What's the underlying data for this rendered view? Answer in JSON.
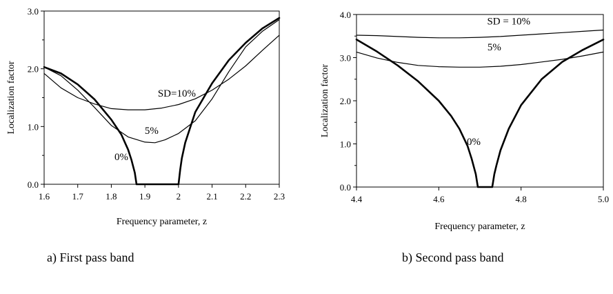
{
  "chart_data": [
    {
      "type": "line",
      "caption": "a) First pass band",
      "xlabel": "Frequency parameter, z",
      "ylabel": "Localization factor",
      "xlim": [
        1.6,
        2.3
      ],
      "ylim": [
        0.0,
        3.0
      ],
      "xticks": [
        "1.6",
        "1.7",
        "1.8",
        "1.9",
        "2",
        "2.1",
        "2.2",
        "2.3"
      ],
      "yticks": [
        "0.0",
        "1.0",
        "2.0",
        "3.0"
      ],
      "annotations": [
        {
          "text": "SD=10%",
          "x": 1.995,
          "y": 1.52
        },
        {
          "text": "5%",
          "x": 1.92,
          "y": 0.87
        },
        {
          "text": "0%",
          "x": 1.83,
          "y": 0.42
        }
      ],
      "series": [
        {
          "label": "0%",
          "weight": "thick",
          "points": [
            [
              1.6,
              2.03
            ],
            [
              1.65,
              1.92
            ],
            [
              1.7,
              1.73
            ],
            [
              1.75,
              1.47
            ],
            [
              1.8,
              1.12
            ],
            [
              1.83,
              0.86
            ],
            [
              1.85,
              0.6
            ],
            [
              1.86,
              0.42
            ],
            [
              1.87,
              0.2
            ],
            [
              1.875,
              0.0
            ],
            [
              2.0,
              0.0
            ],
            [
              2.005,
              0.25
            ],
            [
              2.01,
              0.45
            ],
            [
              2.02,
              0.72
            ],
            [
              2.05,
              1.25
            ],
            [
              2.1,
              1.75
            ],
            [
              2.15,
              2.15
            ],
            [
              2.2,
              2.45
            ],
            [
              2.25,
              2.7
            ],
            [
              2.3,
              2.88
            ]
          ]
        },
        {
          "label": "5%",
          "weight": "thin",
          "points": [
            [
              1.6,
              2.03
            ],
            [
              1.65,
              1.88
            ],
            [
              1.7,
              1.63
            ],
            [
              1.75,
              1.33
            ],
            [
              1.8,
              1.02
            ],
            [
              1.85,
              0.82
            ],
            [
              1.9,
              0.73
            ],
            [
              1.93,
              0.72
            ],
            [
              1.96,
              0.77
            ],
            [
              2.0,
              0.88
            ],
            [
              2.05,
              1.1
            ],
            [
              2.1,
              1.48
            ],
            [
              2.15,
              1.95
            ],
            [
              2.2,
              2.38
            ],
            [
              2.25,
              2.65
            ],
            [
              2.3,
              2.85
            ]
          ]
        },
        {
          "label": "SD=10%",
          "weight": "thin",
          "points": [
            [
              1.6,
              1.92
            ],
            [
              1.65,
              1.67
            ],
            [
              1.7,
              1.5
            ],
            [
              1.75,
              1.39
            ],
            [
              1.8,
              1.31
            ],
            [
              1.85,
              1.29
            ],
            [
              1.9,
              1.29
            ],
            [
              1.95,
              1.32
            ],
            [
              2.0,
              1.38
            ],
            [
              2.05,
              1.48
            ],
            [
              2.1,
              1.63
            ],
            [
              2.15,
              1.82
            ],
            [
              2.2,
              2.05
            ],
            [
              2.25,
              2.32
            ],
            [
              2.3,
              2.58
            ]
          ]
        }
      ]
    },
    {
      "type": "line",
      "caption": "b) Second pass band",
      "xlabel": "Frequency parameter, z",
      "ylabel": "Localization factor",
      "xlim": [
        4.4,
        5.0
      ],
      "ylim": [
        0.0,
        4.0
      ],
      "xticks": [
        "4.4",
        "4.6",
        "4.8",
        "5.0"
      ],
      "yticks": [
        "0.0",
        "1.0",
        "2.0",
        "3.0",
        "4.0"
      ],
      "annotations": [
        {
          "text": "SD = 10%",
          "x": 4.77,
          "y": 3.77
        },
        {
          "text": "5%",
          "x": 4.735,
          "y": 3.17
        },
        {
          "text": "0%",
          "x": 4.685,
          "y": 0.98
        }
      ],
      "series": [
        {
          "label": "0%",
          "weight": "thick",
          "points": [
            [
              4.4,
              3.42
            ],
            [
              4.45,
              3.14
            ],
            [
              4.5,
              2.82
            ],
            [
              4.55,
              2.45
            ],
            [
              4.6,
              2.0
            ],
            [
              4.63,
              1.65
            ],
            [
              4.65,
              1.35
            ],
            [
              4.67,
              0.95
            ],
            [
              4.68,
              0.65
            ],
            [
              4.69,
              0.3
            ],
            [
              4.695,
              0.0
            ],
            [
              4.73,
              0.0
            ],
            [
              4.735,
              0.3
            ],
            [
              4.74,
              0.5
            ],
            [
              4.75,
              0.85
            ],
            [
              4.77,
              1.35
            ],
            [
              4.8,
              1.9
            ],
            [
              4.85,
              2.5
            ],
            [
              4.9,
              2.9
            ],
            [
              4.95,
              3.18
            ],
            [
              5.0,
              3.42
            ]
          ]
        },
        {
          "label": "5%",
          "weight": "thin",
          "points": [
            [
              4.4,
              3.13
            ],
            [
              4.45,
              2.99
            ],
            [
              4.5,
              2.89
            ],
            [
              4.55,
              2.82
            ],
            [
              4.6,
              2.79
            ],
            [
              4.65,
              2.78
            ],
            [
              4.7,
              2.78
            ],
            [
              4.75,
              2.8
            ],
            [
              4.8,
              2.84
            ],
            [
              4.85,
              2.9
            ],
            [
              4.9,
              2.96
            ],
            [
              4.95,
              3.04
            ],
            [
              5.0,
              3.13
            ]
          ]
        },
        {
          "label": "SD = 10%",
          "weight": "thin",
          "points": [
            [
              4.4,
              3.52
            ],
            [
              4.45,
              3.51
            ],
            [
              4.5,
              3.49
            ],
            [
              4.55,
              3.47
            ],
            [
              4.6,
              3.46
            ],
            [
              4.65,
              3.46
            ],
            [
              4.7,
              3.47
            ],
            [
              4.75,
              3.49
            ],
            [
              4.8,
              3.52
            ],
            [
              4.85,
              3.55
            ],
            [
              4.9,
              3.58
            ],
            [
              4.95,
              3.61
            ],
            [
              5.0,
              3.64
            ]
          ]
        }
      ]
    }
  ]
}
